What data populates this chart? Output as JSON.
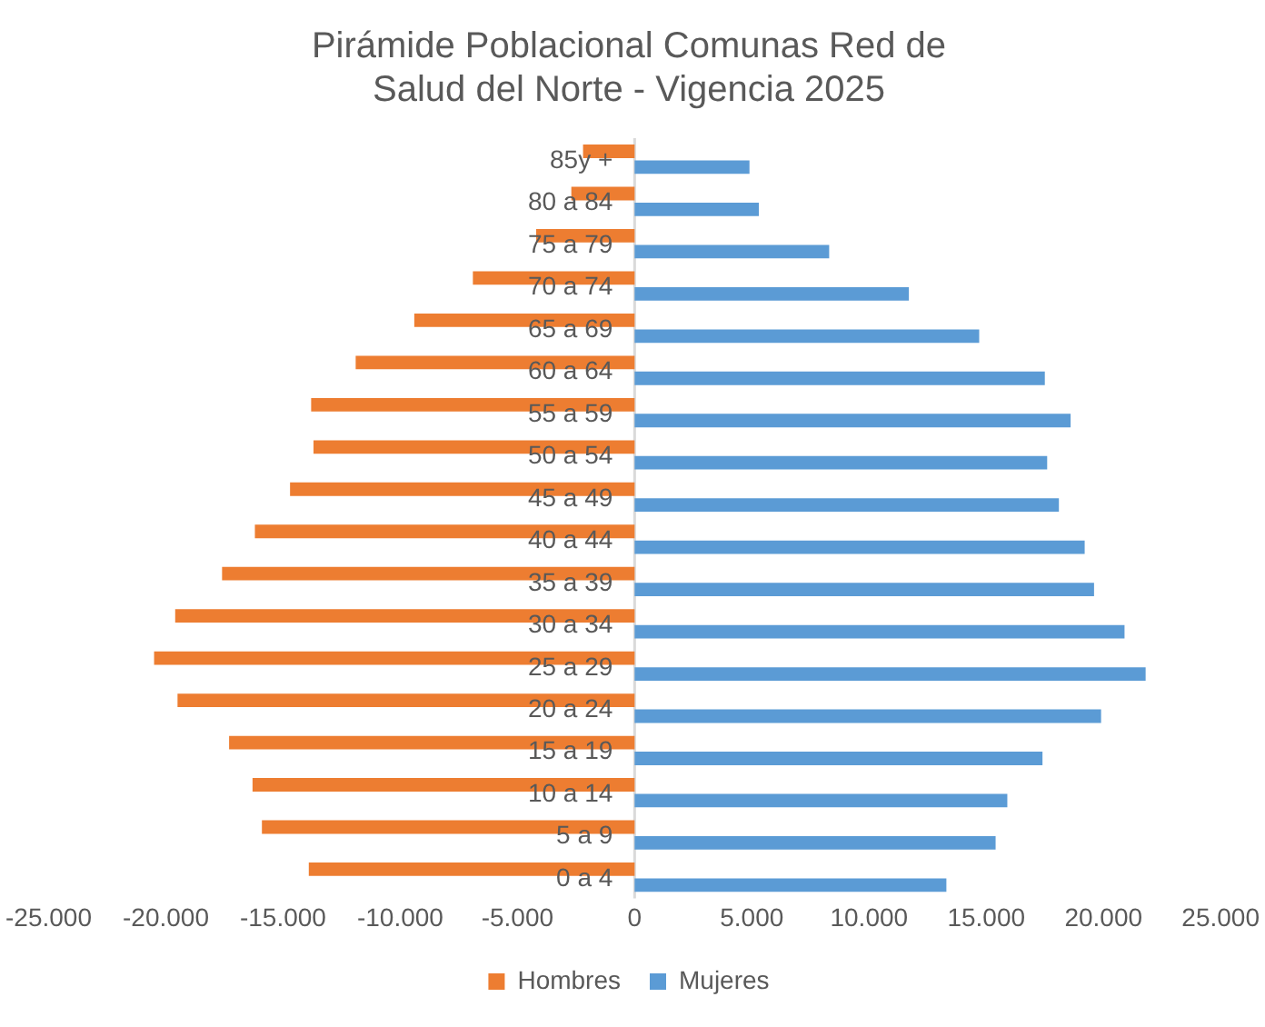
{
  "chart_data": {
    "type": "bar",
    "orientation": "horizontal",
    "title": "Pirámide Poblacional Comunas Red de Salud del Norte - Vigencia 2025",
    "categories": [
      "85y +",
      "80 a 84",
      "75 a 79",
      "70 a 74",
      "65 a 69",
      "60 a 64",
      "55 a 59",
      "50 a 54",
      "45 a 49",
      "40 a 44",
      "35 a 39",
      "30 a 34",
      "25 a 29",
      "20 a 24",
      "15 a 19",
      "10 a 14",
      "5 a 9",
      "0 a 4"
    ],
    "series": [
      {
        "name": "Hombres",
        "color": "#ed7d31",
        "values": [
          -2200,
          -2700,
          -4200,
          -6900,
          -9400,
          -11900,
          -13800,
          -13700,
          -14700,
          -16200,
          -17600,
          -19600,
          -20500,
          -19500,
          -17300,
          -16300,
          -15900,
          -13900
        ]
      },
      {
        "name": "Mujeres",
        "color": "#5b9bd5",
        "values": [
          4900,
          5300,
          8300,
          11700,
          14700,
          17500,
          18600,
          17600,
          18100,
          19200,
          19600,
          20900,
          21800,
          19900,
          17400,
          15900,
          15400,
          13300
        ]
      }
    ],
    "xlim": [
      -25000,
      25000
    ],
    "xticks": [
      {
        "value": -25000,
        "label": "-25.000"
      },
      {
        "value": -20000,
        "label": "-20.000"
      },
      {
        "value": -15000,
        "label": "-15.000"
      },
      {
        "value": -10000,
        "label": "-10.000"
      },
      {
        "value": -5000,
        "label": "-5.000"
      },
      0,
      {
        "value": 5000,
        "label": "5.000"
      },
      {
        "value": 10000,
        "label": "10.000"
      },
      {
        "value": 15000,
        "label": "15.000"
      },
      {
        "value": 20000,
        "label": "20.000"
      },
      {
        "value": 25000,
        "label": "25.000"
      }
    ],
    "grid": false,
    "legend": "bottom"
  }
}
